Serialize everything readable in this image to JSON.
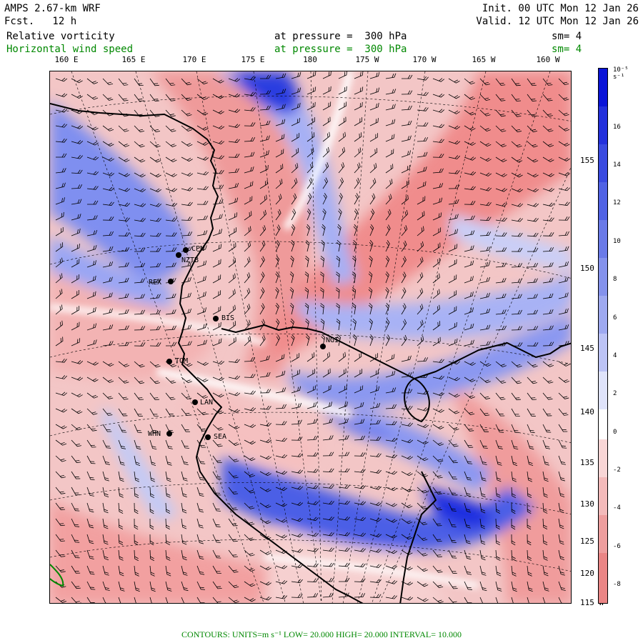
{
  "header": {
    "model": "AMPS 2.67-km WRF",
    "fcst": "Fcst.   12 h",
    "init": "Init. 00 UTC Mon 12 Jan 26",
    "valid": "Valid. 12 UTC Mon 12 Jan 26",
    "field1": "Relative vorticity",
    "field2": "Horizontal wind speed",
    "level1": "at pressure =  300 hPa",
    "level2": "at pressure =  300 hPa",
    "sm1": "sm= 4",
    "sm2": "sm= 4"
  },
  "colors": {
    "positive": "#1a33e6",
    "negative": "#f08c8c",
    "contour": "#008800"
  },
  "lon_labels": [
    "160 E",
    "165 E",
    "170 E",
    "175 E",
    "180",
    "175 W",
    "170 W",
    "165 W",
    "160 W"
  ],
  "lat_labels": [
    "155 W",
    "150 W",
    "145 W",
    "140 W",
    "135 W",
    "130 W",
    "125 W",
    "120 W",
    "115 W"
  ],
  "colorbar": {
    "unit": "10⁻⁵ s⁻¹",
    "ticks": [
      "16",
      "14",
      "12",
      "10",
      "8",
      "6",
      "4",
      "2",
      "0",
      "-2",
      "-4",
      "-6",
      "-8"
    ]
  },
  "stations": [
    {
      "label": "CPN"
    },
    {
      "label": "NZTB"
    },
    {
      "label": "REX"
    },
    {
      "label": "BIS"
    },
    {
      "label": "NGI"
    },
    {
      "label": "TOM"
    },
    {
      "label": "LAN"
    },
    {
      "label": "WHN"
    },
    {
      "label": "SEA"
    }
  ],
  "footer": {
    "text": "CONTOURS:  UNITS=m s⁻¹  LOW=  20.000        HIGH=  20.000        INTERVAL=    10.000"
  }
}
